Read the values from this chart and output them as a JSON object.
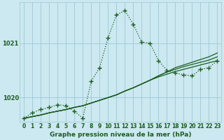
{
  "title": "Graphe pression niveau de la mer (hPa)",
  "bg_color": "#cce8f0",
  "grid_color": "#9dc8d8",
  "line_color": "#1a5e20",
  "x_values": [
    0,
    1,
    2,
    3,
    4,
    5,
    6,
    7,
    8,
    9,
    10,
    11,
    12,
    13,
    14,
    15,
    16,
    17,
    18,
    19,
    20,
    21,
    22,
    23
  ],
  "main_series": [
    1019.62,
    1019.72,
    1019.78,
    1019.82,
    1019.87,
    1019.85,
    1019.75,
    1019.62,
    1020.3,
    1020.55,
    1021.1,
    1021.52,
    1021.6,
    1021.35,
    1021.02,
    1021.0,
    1020.68,
    1020.5,
    1020.45,
    1020.42,
    1020.4,
    1020.52,
    1020.55,
    1020.68
  ],
  "trend1": [
    1019.62,
    1019.65,
    1019.68,
    1019.72,
    1019.75,
    1019.78,
    1019.82,
    1019.85,
    1019.9,
    1019.95,
    1020.0,
    1020.05,
    1020.12,
    1020.18,
    1020.25,
    1020.32,
    1020.4,
    1020.47,
    1020.55,
    1020.6,
    1020.65,
    1020.7,
    1020.75,
    1020.82
  ],
  "trend2": [
    1019.62,
    1019.65,
    1019.68,
    1019.72,
    1019.75,
    1019.78,
    1019.82,
    1019.85,
    1019.9,
    1019.95,
    1020.0,
    1020.05,
    1020.12,
    1020.18,
    1020.25,
    1020.32,
    1020.4,
    1020.47,
    1020.52,
    1020.57,
    1020.61,
    1020.65,
    1020.69,
    1020.75
  ],
  "trend3": [
    1019.62,
    1019.65,
    1019.68,
    1019.72,
    1019.75,
    1019.78,
    1019.82,
    1019.85,
    1019.9,
    1019.95,
    1020.0,
    1020.05,
    1020.12,
    1020.18,
    1020.25,
    1020.32,
    1020.38,
    1020.43,
    1020.48,
    1020.52,
    1020.56,
    1020.6,
    1020.64,
    1020.68
  ],
  "ylim": [
    1019.55,
    1021.75
  ],
  "yticks": [
    1020.0,
    1021.0
  ],
  "xlim": [
    -0.5,
    23.5
  ],
  "marker": "+",
  "marker_size": 4,
  "marker_lw": 1.0,
  "line_lw": 0.9,
  "title_fontsize": 6.5,
  "tick_fontsize": 5.5
}
